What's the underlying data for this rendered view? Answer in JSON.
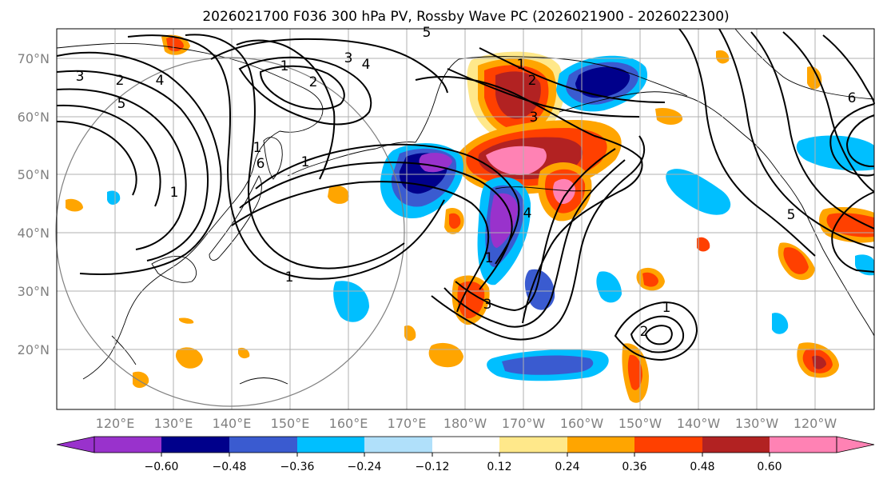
{
  "title": "2026021700 F036 300 hPa PV, Rossby Wave PC (2026021900 - 2026022300)",
  "map": {
    "lon_range": [
      "110°E",
      "110°W"
    ],
    "lat_range": [
      10,
      75
    ],
    "lat_labels": [
      "70°N",
      "60°N",
      "50°N",
      "40°N",
      "30°N",
      "20°N"
    ],
    "lon_labels": [
      "120°E",
      "130°E",
      "140°E",
      "150°E",
      "160°E",
      "170°E",
      "180°W",
      "170°W",
      "160°W",
      "150°W",
      "140°W",
      "130°W",
      "120°W"
    ]
  },
  "contour_labels": [
    "3",
    "2",
    "5",
    "4",
    "1",
    "2",
    "3",
    "4",
    "5",
    "1",
    "1",
    "6",
    "1",
    "1",
    "1",
    "1",
    "2",
    "3",
    "4",
    "1",
    "2",
    "3",
    "5",
    "6"
  ],
  "colorbar": {
    "ticks": [
      "−0.60",
      "−0.48",
      "−0.36",
      "−0.24",
      "−0.12",
      "0.12",
      "0.24",
      "0.36",
      "0.48",
      "0.60"
    ],
    "colors": [
      "#9932cc",
      "#00008b",
      "#3a5bd0",
      "#00bfff",
      "#b0e0fa",
      "#ffffff",
      "#ffe88a",
      "#ffa500",
      "#ff4000",
      "#b22222",
      "#ff82b4"
    ]
  }
}
